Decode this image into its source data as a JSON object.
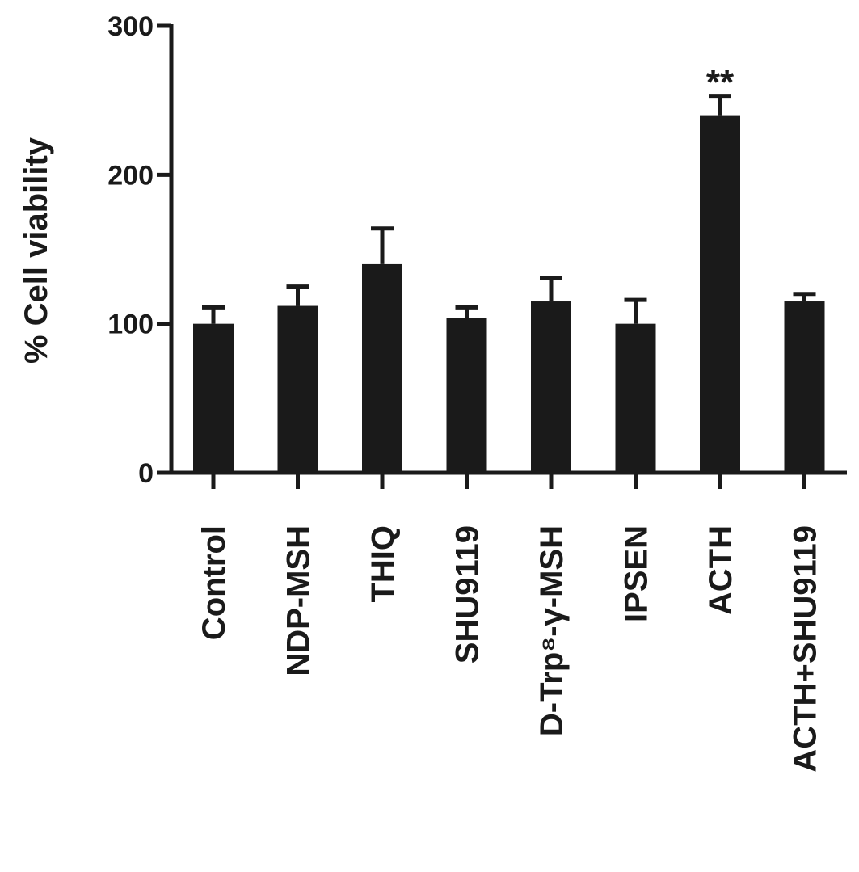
{
  "chart_data": {
    "type": "bar",
    "y_label": "% Cell viability",
    "categories": [
      "Control",
      "NDP-MSH",
      "THIQ",
      "SHU9119",
      "D-Trp⁸-γ-MSH",
      "IPSEN",
      "ACTH",
      "ACTH+SHU9119"
    ],
    "series": [
      {
        "color": "#1a1a1a",
        "values": [
          100,
          112,
          140,
          104,
          115,
          100,
          240,
          115
        ],
        "errors": [
          11,
          13,
          24,
          7,
          16,
          16,
          13,
          5
        ]
      }
    ],
    "ylim": [
      0,
      300
    ],
    "yticks": [
      0,
      100,
      200,
      300
    ],
    "annotations": [
      {
        "label": "**",
        "category": "ACTH"
      }
    ]
  }
}
